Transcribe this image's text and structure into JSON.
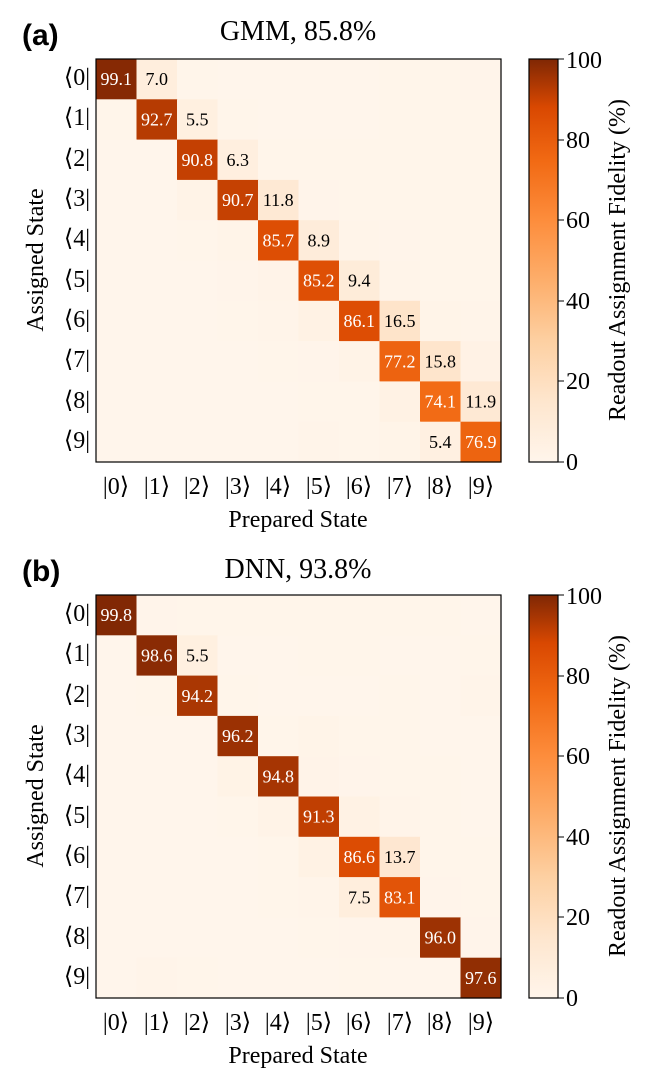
{
  "chart_data": [
    {
      "type": "heatmap",
      "panel_label": "(a)",
      "title": "GMM, 85.8%",
      "xlabel": "Prepared State",
      "ylabel": "Assigned State",
      "x_ticks": [
        "|0⟩",
        "|1⟩",
        "|2⟩",
        "|3⟩",
        "|4⟩",
        "|5⟩",
        "|6⟩",
        "|7⟩",
        "|8⟩",
        "|9⟩"
      ],
      "y_ticks": [
        "⟨0|",
        "⟨1|",
        "⟨2|",
        "⟨3|",
        "⟨4|",
        "⟨5|",
        "⟨6|",
        "⟨7|",
        "⟨8|",
        "⟨9|"
      ],
      "colorbar_label": "Readout Assignment Fidelity (%)",
      "colorbar_ticks": [
        "0",
        "20",
        "40",
        "60",
        "80",
        "100"
      ],
      "vmin": 0,
      "vmax": 100,
      "annotations": [
        {
          "row": 0,
          "col": 0,
          "text": "99.1"
        },
        {
          "row": 0,
          "col": 1,
          "text": "7.0"
        },
        {
          "row": 1,
          "col": 1,
          "text": "92.7"
        },
        {
          "row": 1,
          "col": 2,
          "text": "5.5"
        },
        {
          "row": 2,
          "col": 2,
          "text": "90.8"
        },
        {
          "row": 2,
          "col": 3,
          "text": "6.3"
        },
        {
          "row": 3,
          "col": 3,
          "text": "90.7"
        },
        {
          "row": 3,
          "col": 4,
          "text": "11.8"
        },
        {
          "row": 4,
          "col": 4,
          "text": "85.7"
        },
        {
          "row": 4,
          "col": 5,
          "text": "8.9"
        },
        {
          "row": 5,
          "col": 5,
          "text": "85.2"
        },
        {
          "row": 5,
          "col": 6,
          "text": "9.4"
        },
        {
          "row": 6,
          "col": 6,
          "text": "86.1"
        },
        {
          "row": 6,
          "col": 7,
          "text": "16.5"
        },
        {
          "row": 7,
          "col": 7,
          "text": "77.2"
        },
        {
          "row": 7,
          "col": 8,
          "text": "15.8"
        },
        {
          "row": 8,
          "col": 8,
          "text": "74.1"
        },
        {
          "row": 8,
          "col": 9,
          "text": "11.9"
        },
        {
          "row": 9,
          "col": 8,
          "text": "5.4"
        },
        {
          "row": 9,
          "col": 9,
          "text": "76.9"
        }
      ],
      "matrix": [
        [
          99.1,
          7.0,
          0.4,
          0.2,
          0.2,
          0.2,
          0.2,
          0.3,
          0.4,
          0.6
        ],
        [
          0.3,
          92.7,
          5.5,
          0.3,
          0.2,
          0.2,
          0.2,
          0.3,
          0.3,
          0.5
        ],
        [
          0.1,
          0.2,
          90.8,
          6.3,
          0.5,
          0.3,
          0.3,
          0.3,
          0.3,
          0.4
        ],
        [
          0.1,
          0.1,
          2.0,
          90.7,
          11.8,
          0.6,
          0.4,
          0.4,
          0.3,
          0.4
        ],
        [
          0.1,
          0.0,
          0.5,
          1.5,
          85.7,
          8.9,
          1.0,
          0.6,
          0.4,
          0.4
        ],
        [
          0.1,
          0.0,
          0.2,
          0.6,
          1.8,
          85.2,
          9.4,
          1.0,
          0.5,
          0.5
        ],
        [
          0.1,
          0.0,
          0.1,
          0.3,
          0.8,
          3.5,
          86.1,
          16.5,
          1.5,
          1.2
        ],
        [
          0.1,
          0.0,
          0.1,
          0.2,
          0.4,
          0.7,
          2.0,
          77.2,
          15.8,
          3.0
        ],
        [
          0.0,
          0.0,
          0.0,
          0.1,
          0.2,
          0.3,
          0.5,
          3.5,
          74.1,
          11.9
        ],
        [
          0.0,
          0.0,
          0.0,
          0.1,
          0.2,
          0.8,
          0.4,
          1.5,
          5.4,
          76.9
        ]
      ]
    },
    {
      "type": "heatmap",
      "panel_label": "(b)",
      "title": "DNN, 93.8%",
      "xlabel": "Prepared State",
      "ylabel": "Assigned State",
      "x_ticks": [
        "|0⟩",
        "|1⟩",
        "|2⟩",
        "|3⟩",
        "|4⟩",
        "|5⟩",
        "|6⟩",
        "|7⟩",
        "|8⟩",
        "|9⟩"
      ],
      "y_ticks": [
        "⟨0|",
        "⟨1|",
        "⟨2|",
        "⟨3|",
        "⟨4|",
        "⟨5|",
        "⟨6|",
        "⟨7|",
        "⟨8|",
        "⟨9|"
      ],
      "colorbar_label": "Readout Assignment Fidelity (%)",
      "colorbar_ticks": [
        "0",
        "20",
        "40",
        "60",
        "80",
        "100"
      ],
      "vmin": 0,
      "vmax": 100,
      "annotations": [
        {
          "row": 0,
          "col": 0,
          "text": "99.8"
        },
        {
          "row": 1,
          "col": 1,
          "text": "98.6"
        },
        {
          "row": 1,
          "col": 2,
          "text": "5.5"
        },
        {
          "row": 2,
          "col": 2,
          "text": "94.2"
        },
        {
          "row": 3,
          "col": 3,
          "text": "96.2"
        },
        {
          "row": 4,
          "col": 4,
          "text": "94.8"
        },
        {
          "row": 5,
          "col": 5,
          "text": "91.3"
        },
        {
          "row": 6,
          "col": 6,
          "text": "86.6"
        },
        {
          "row": 6,
          "col": 7,
          "text": "13.7"
        },
        {
          "row": 7,
          "col": 6,
          "text": "7.5"
        },
        {
          "row": 7,
          "col": 7,
          "text": "83.1"
        },
        {
          "row": 8,
          "col": 8,
          "text": "96.0"
        },
        {
          "row": 9,
          "col": 9,
          "text": "97.6"
        }
      ],
      "matrix": [
        [
          99.8,
          0.6,
          0.3,
          0.4,
          0.5,
          0.4,
          0.3,
          0.4,
          0.3,
          0.2
        ],
        [
          0.1,
          98.6,
          5.5,
          0.2,
          0.2,
          0.3,
          0.3,
          0.2,
          0.2,
          0.3
        ],
        [
          0.0,
          0.5,
          94.2,
          0.4,
          0.2,
          0.2,
          0.2,
          0.3,
          0.2,
          0.8
        ],
        [
          0.0,
          0.1,
          0.1,
          96.2,
          0.5,
          1.5,
          0.3,
          0.3,
          0.2,
          0.2
        ],
        [
          0.0,
          0.1,
          0.1,
          2.5,
          94.8,
          1.8,
          0.6,
          0.3,
          0.3,
          0.2
        ],
        [
          0.0,
          0.1,
          0.1,
          0.3,
          2.0,
          91.3,
          3.5,
          0.8,
          0.3,
          0.2
        ],
        [
          0.0,
          0.1,
          0.1,
          0.2,
          0.5,
          3.5,
          86.6,
          13.7,
          0.5,
          0.3
        ],
        [
          0.0,
          0.1,
          0.1,
          0.1,
          0.3,
          1.0,
          7.5,
          83.1,
          0.6,
          0.4
        ],
        [
          0.0,
          0.1,
          0.1,
          0.1,
          0.2,
          0.3,
          0.6,
          1.2,
          96.0,
          0.6
        ],
        [
          0.0,
          1.0,
          0.5,
          0.1,
          0.1,
          0.2,
          0.3,
          0.2,
          0.2,
          97.6
        ]
      ]
    }
  ]
}
